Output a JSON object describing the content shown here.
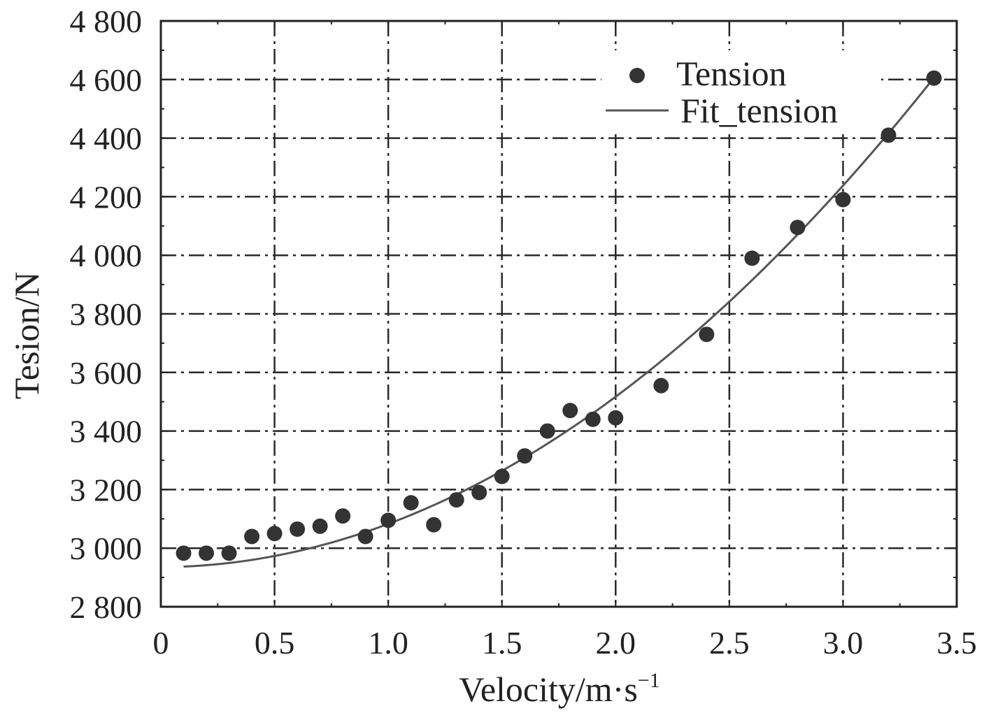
{
  "chart_data": {
    "type": "scatter",
    "title": "",
    "xlabel": "Velocity/m·s",
    "xlabel_superscript": "−1",
    "ylabel": "Tesion/N",
    "xlim": [
      0,
      3.5
    ],
    "ylim": [
      2800,
      4800
    ],
    "xticks": [
      0,
      0.5,
      1.0,
      1.5,
      2.0,
      2.5,
      3.0,
      3.5
    ],
    "xtick_labels": [
      "0",
      "0.5",
      "1.0",
      "1.5",
      "2.0",
      "2.5",
      "3.0",
      "3.5"
    ],
    "yticks": [
      2800,
      3000,
      3200,
      3400,
      3600,
      3800,
      4000,
      4200,
      4400,
      4600,
      4800
    ],
    "ytick_labels": [
      "2 800",
      "3 000",
      "3 200",
      "3 400",
      "3 600",
      "3 800",
      "4 000",
      "4 200",
      "4 400",
      "4 600",
      "4 800"
    ],
    "grid": true,
    "legend_position": "top-right",
    "series": [
      {
        "name": "Tension",
        "kind": "scatter",
        "color": "#333333",
        "x": [
          0.1,
          0.2,
          0.3,
          0.4,
          0.5,
          0.6,
          0.7,
          0.8,
          0.9,
          1.0,
          1.1,
          1.2,
          1.3,
          1.4,
          1.5,
          1.6,
          1.7,
          1.8,
          1.9,
          2.0,
          2.2,
          2.4,
          2.6,
          2.8,
          3.0,
          3.2,
          3.4
        ],
        "y": [
          2983,
          2983,
          2983,
          3040,
          3050,
          3065,
          3075,
          3110,
          3040,
          3095,
          3155,
          3080,
          3165,
          3190,
          3245,
          3315,
          3400,
          3470,
          3440,
          3445,
          3555,
          3730,
          3990,
          4095,
          4190,
          4410,
          4605
        ]
      },
      {
        "name": "Fit_tension",
        "kind": "line",
        "color": "#555555",
        "equation": {
          "a": 2935.3,
          "b": 4.3,
          "c": 143.3,
          "x_start": 0.1,
          "x_end": 3.4
        },
        "y_points": [
          [
            0.1,
            2938
          ],
          [
            0.5,
            2973
          ],
          [
            1.0,
            3083
          ],
          [
            1.5,
            3263
          ],
          [
            2.0,
            3517
          ],
          [
            2.5,
            3842
          ],
          [
            3.0,
            4238
          ],
          [
            3.4,
            4607
          ]
        ]
      }
    ]
  }
}
